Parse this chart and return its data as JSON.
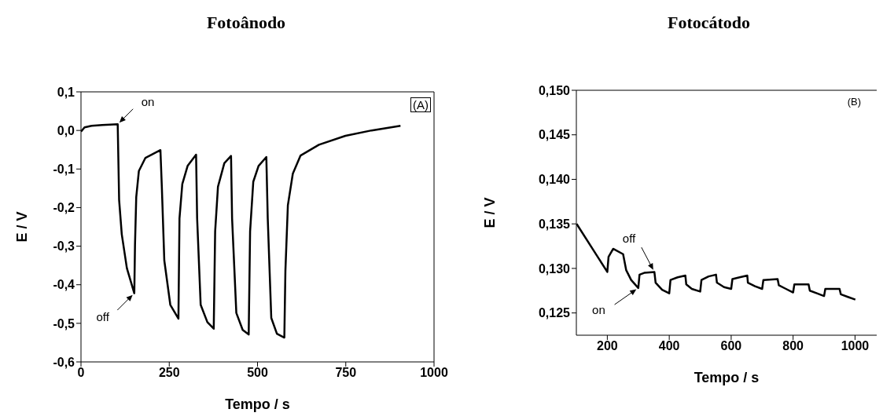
{
  "chart_data": [
    {
      "type": "line",
      "title": "Fotoânodo",
      "xlabel": "Tempo / s",
      "ylabel": "E / V",
      "xlim": [
        0,
        1000
      ],
      "xticks": [
        0,
        250,
        500,
        750,
        1000
      ],
      "ylim": [
        -0.6,
        0.1
      ],
      "yticks": [
        {
          "value": -0.6,
          "label": "-0,6"
        },
        {
          "value": -0.5,
          "label": "-0,5"
        },
        {
          "value": -0.4,
          "label": "-0,4"
        },
        {
          "value": -0.3,
          "label": "-0,3"
        },
        {
          "value": -0.2,
          "label": "-0,2"
        },
        {
          "value": -0.1,
          "label": "-0,1"
        },
        {
          "value": 0,
          "label": "0,0"
        },
        {
          "value": 0.1,
          "label": "0,1"
        }
      ],
      "marker": "none",
      "line_style": "solid",
      "annotations": [
        "(A)",
        {
          "text": "on",
          "x": 104,
          "y": 0.016
        },
        {
          "text": "off",
          "x": 151,
          "y": -0.422
        }
      ],
      "series": [
        {
          "color": "#000000",
          "x": [
            0,
            10,
            30,
            60,
            104,
            108,
            115.5,
            130,
            151,
            153,
            156.5,
            164,
            182.6,
            225,
            229,
            236,
            253,
            276,
            279,
            287,
            302,
            326,
            329,
            339,
            358,
            376,
            380,
            388,
            406,
            425,
            428,
            440,
            458,
            475,
            479,
            488,
            503,
            525,
            529,
            539,
            555,
            576,
            579,
            586,
            600,
            622,
            674,
            749,
            823,
            905
          ],
          "values": [
            -0.003,
            0.008,
            0.012,
            0.014,
            0.016,
            -0.18,
            -0.269,
            -0.357,
            -0.422,
            -0.296,
            -0.173,
            -0.105,
            -0.071,
            -0.051,
            -0.146,
            -0.337,
            -0.452,
            -0.488,
            -0.228,
            -0.139,
            -0.092,
            -0.063,
            -0.228,
            -0.452,
            -0.497,
            -0.514,
            -0.262,
            -0.146,
            -0.085,
            -0.066,
            -0.228,
            -0.473,
            -0.517,
            -0.529,
            -0.262,
            -0.133,
            -0.092,
            -0.069,
            -0.228,
            -0.486,
            -0.527,
            -0.537,
            -0.364,
            -0.194,
            -0.112,
            -0.065,
            -0.037,
            -0.014,
            0.0,
            0.012
          ]
        }
      ]
    },
    {
      "type": "line",
      "title": "Fotocátodo",
      "xlabel": "Tempo / s",
      "ylabel": "E / V",
      "xlim": [
        100,
        1070
      ],
      "xticks": [
        200,
        400,
        600,
        800,
        1000
      ],
      "ylim": [
        0.1225,
        0.15
      ],
      "yticks": [
        {
          "value": 0.125,
          "label": "0,125"
        },
        {
          "value": 0.13,
          "label": "0,130"
        },
        {
          "value": 0.135,
          "label": "0,135"
        },
        {
          "value": 0.14,
          "label": "0,140"
        },
        {
          "value": 0.145,
          "label": "0,145"
        },
        {
          "value": 0.15,
          "label": "0,150"
        }
      ],
      "marker": "none",
      "line_style": "solid",
      "annotations": [
        "(B)",
        {
          "text": "off",
          "x": 352,
          "y": 0.1296
        },
        {
          "text": "on",
          "x": 300,
          "y": 0.1278
        }
      ],
      "series": [
        {
          "color": "#000000",
          "x": [
            101,
            200,
            204,
            219,
            251,
            261,
            277,
            300,
            304,
            319,
            352,
            356,
            377,
            400,
            404,
            427,
            452,
            455,
            473,
            500,
            504,
            527,
            551,
            554,
            577,
            600,
            604,
            627,
            652,
            654,
            677,
            700,
            704,
            750,
            754,
            777,
            800,
            804,
            850,
            854,
            877,
            900,
            904,
            950,
            954,
            977,
            1001
          ],
          "values": [
            0.135,
            0.1296,
            0.1313,
            0.1322,
            0.1316,
            0.1298,
            0.1287,
            0.1278,
            0.1293,
            0.1295,
            0.1296,
            0.1284,
            0.1276,
            0.1272,
            0.1287,
            0.129,
            0.1292,
            0.1282,
            0.1277,
            0.1274,
            0.1287,
            0.1291,
            0.1293,
            0.1284,
            0.1279,
            0.1277,
            0.1288,
            0.129,
            0.1292,
            0.1284,
            0.128,
            0.1277,
            0.1287,
            0.1288,
            0.1281,
            0.1277,
            0.1273,
            0.1282,
            0.1282,
            0.1275,
            0.1272,
            0.1269,
            0.1277,
            0.1277,
            0.1271,
            0.1268,
            0.1265
          ]
        }
      ]
    }
  ]
}
